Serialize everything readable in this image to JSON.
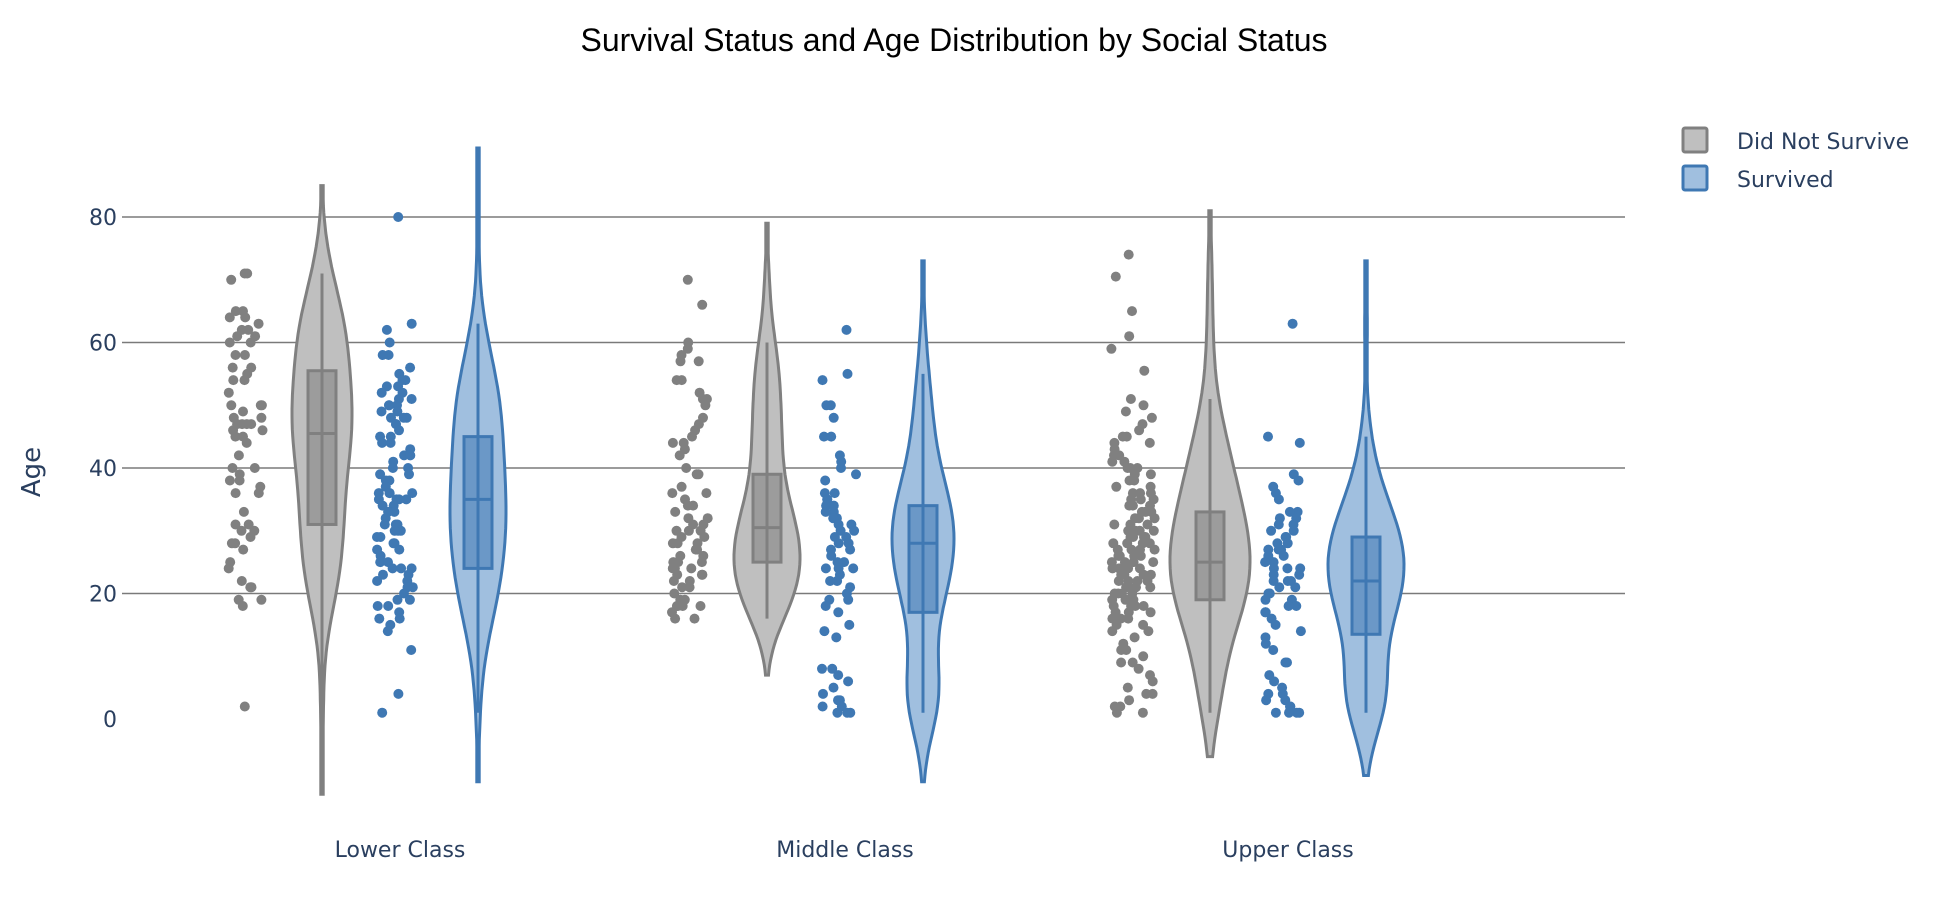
{
  "chart_data": {
    "type": "violin",
    "title": "Survival Status and Age Distribution by Social Status",
    "xlabel": "",
    "ylabel": "Age",
    "categories": [
      "Lower Class",
      "Middle Class",
      "Upper Class"
    ],
    "yticks": [
      0,
      20,
      40,
      60,
      80
    ],
    "ylim": [
      -14,
      95
    ],
    "grid": true,
    "legend_position": "top-right",
    "series": [
      {
        "name": "Did Not Survive",
        "color": "#808080",
        "fill": "#bfbfbf",
        "groups": [
          {
            "category": "Lower Class",
            "box": {
              "q1": 31,
              "median": 45.5,
              "q3": 55.5,
              "whisker_low": 2,
              "whisker_high": 71
            },
            "kde_range": [
              -12,
              85
            ],
            "kde_peak": 45,
            "points": [
              71,
              71,
              70,
              65,
              65,
              64,
              64,
              63,
              62,
              62,
              61,
              61,
              60,
              60,
              58,
              58,
              56,
              56,
              55,
              54,
              54,
              52,
              50,
              50,
              50,
              49,
              48,
              48,
              47,
              47,
              47,
              47,
              46,
              46,
              45,
              45,
              44,
              42,
              40,
              40,
              39,
              38,
              38,
              37,
              36,
              36,
              33,
              31,
              31,
              30,
              30,
              29,
              28,
              28,
              27,
              25,
              24,
              22,
              21,
              21,
              19,
              19,
              18,
              2
            ]
          },
          {
            "category": "Middle Class",
            "box": {
              "q1": 25,
              "median": 30.5,
              "q3": 39,
              "whisker_low": 16,
              "whisker_high": 60
            },
            "kde_range": [
              7,
              79
            ],
            "kde_peak": 28,
            "points": [
              70,
              66,
              60,
              59,
              58,
              57,
              57,
              54,
              54,
              52,
              51,
              51,
              50,
              48,
              47,
              46,
              45,
              44,
              44,
              43,
              42,
              40,
              39,
              39,
              37,
              36,
              36,
              35,
              34,
              34,
              33,
              32,
              32,
              31,
              31,
              30,
              30,
              30,
              29,
              29,
              28,
              28,
              28,
              27,
              27,
              26,
              26,
              25,
              25,
              25,
              24,
              24,
              24,
              23,
              23,
              23,
              22,
              22,
              21,
              21,
              20,
              19,
              19,
              18,
              18,
              18,
              18,
              17,
              16,
              16
            ]
          },
          {
            "category": "Upper Class",
            "box": {
              "q1": 19,
              "median": 25,
              "q3": 33,
              "whisker_low": 1,
              "whisker_high": 51
            },
            "kde_range": [
              -6,
              81
            ],
            "kde_peak": 24,
            "points": [
              74,
              70.5,
              65,
              61,
              59,
              55.5,
              51,
              50,
              49,
              48,
              47,
              46,
              45,
              45,
              44,
              44,
              43,
              42,
              42,
              41,
              41,
              40,
              40,
              40,
              39,
              39,
              38,
              38,
              37,
              37,
              36,
              36,
              36,
              35,
              35,
              35,
              34,
              34,
              34,
              33,
              33,
              33,
              32,
              32,
              32,
              31,
              31,
              31,
              30,
              30,
              30,
              30,
              29,
              29,
              29,
              29,
              28,
              28,
              28,
              28,
              27,
              27,
              27,
              27,
              26,
              26,
              26,
              26,
              25,
              25,
              25,
              25,
              24,
              24,
              24,
              24,
              23,
              23,
              23,
              23,
              22,
              22,
              22,
              22,
              21,
              21,
              21,
              21,
              20,
              20,
              20,
              20,
              19,
              19,
              19,
              19,
              18,
              18,
              18,
              18,
              17,
              17,
              17,
              16,
              16,
              16,
              15,
              15,
              14,
              14,
              13,
              12,
              11,
              11,
              10,
              9,
              9,
              8,
              7,
              6,
              5,
              4,
              4,
              3,
              2,
              2,
              1,
              1
            ]
          }
        ]
      },
      {
        "name": "Survived",
        "color": "#3f78b3",
        "fill": "#a0bfdf",
        "groups": [
          {
            "category": "Lower Class",
            "box": {
              "q1": 24,
              "median": 35,
              "q3": 45,
              "whisker_low": 1,
              "whisker_high": 63
            },
            "kde_range": [
              -10,
              91
            ],
            "kde_peak": 35,
            "points": [
              80,
              63,
              62,
              60,
              58,
              58,
              56,
              55,
              54,
              54,
              53,
              53,
              52,
              52,
              51,
              51,
              50,
              50,
              50,
              49,
              49,
              48,
              48,
              48,
              47,
              47,
              46,
              45,
              45,
              44,
              44,
              43,
              42,
              42,
              41,
              40,
              40,
              39,
              39,
              38,
              38,
              37,
              36,
              36,
              36,
              36,
              35,
              35,
              35,
              35,
              34,
              34,
              33,
              33,
              32,
              31,
              31,
              31,
              30,
              30,
              30,
              29,
              29,
              28,
              28,
              27,
              27,
              26,
              25,
              25,
              24,
              24,
              24,
              23,
              23,
              22,
              22,
              21,
              21,
              20,
              19,
              19,
              18,
              18,
              17,
              16,
              16,
              15,
              14,
              11,
              4,
              1
            ]
          },
          {
            "category": "Middle Class",
            "box": {
              "q1": 17,
              "median": 28,
              "q3": 34,
              "whisker_low": 1,
              "whisker_high": 55
            },
            "kde_range": [
              -10,
              73
            ],
            "kde_peak": 29,
            "points": [
              62,
              55,
              54,
              50,
              50,
              48,
              45,
              45,
              42,
              41,
              40,
              39,
              38,
              36,
              36,
              35,
              35,
              34,
              34,
              33,
              33,
              32,
              32,
              31,
              31,
              30,
              30,
              29,
              29,
              28,
              28,
              27,
              27,
              26,
              25,
              25,
              24,
              24,
              24,
              23,
              22,
              22,
              21,
              20,
              19,
              19,
              18,
              17,
              15,
              14,
              13,
              8,
              8,
              7,
              6,
              5,
              4,
              3,
              3,
              2,
              2,
              1,
              1,
              1
            ]
          },
          {
            "category": "Upper Class",
            "box": {
              "q1": 13.5,
              "median": 22,
              "q3": 29,
              "whisker_low": 1,
              "whisker_high": 45
            },
            "kde_range": [
              -9,
              73
            ],
            "kde_peak": 24,
            "points": [
              63,
              45,
              44,
              39,
              38,
              37,
              36,
              35,
              33,
              33,
              32,
              32,
              31,
              31,
              30,
              30,
              29,
              29,
              28,
              28,
              27,
              27,
              27,
              26,
              26,
              25,
              25,
              24,
              24,
              24,
              23,
              23,
              22,
              22,
              22,
              21,
              21,
              20,
              20,
              19,
              19,
              18,
              18,
              17,
              17,
              16,
              15,
              14,
              13,
              12,
              11,
              9,
              9,
              7,
              6,
              5,
              4,
              4,
              3,
              3,
              2,
              2,
              1,
              1,
              1,
              1
            ]
          }
        ]
      }
    ]
  }
}
